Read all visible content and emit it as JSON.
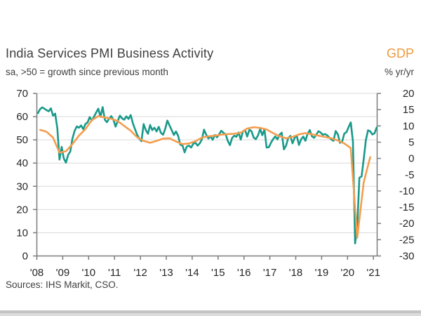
{
  "header": {
    "title": "India Services PMI Business Activity",
    "subtitle": "sa, >50 = growth since previous month",
    "right_title": "GDP",
    "right_subtitle": "% yr/yr"
  },
  "footer": {
    "sources": "Sources: IHS Markit, CSO."
  },
  "chart_data": {
    "type": "line",
    "title": "India Services PMI Business Activity",
    "grid": true,
    "legend_position": "none",
    "style": {
      "grid_color": "#d9d9d9",
      "axis_color": "#7d7d7d",
      "tick_label_color": "#262626",
      "pmi_color": "#18998a",
      "gdp_color": "#f59d4d",
      "gdp_text_color": "#ee9a3d"
    },
    "left_axis": {
      "label": "sa, >50 = growth since previous month",
      "min": 0,
      "max": 70,
      "ticks": [
        70,
        60,
        50,
        40,
        30,
        20,
        10,
        0
      ]
    },
    "right_axis": {
      "label": "% yr/yr",
      "min": -30,
      "max": 20,
      "ticks": [
        20,
        15,
        10,
        5,
        0,
        -5,
        -10,
        -15,
        -20,
        -25,
        -30
      ]
    },
    "x_axis": {
      "start_year": 2008,
      "tick_labels": [
        "'08",
        "'09",
        "'10",
        "'11",
        "'12",
        "'13",
        "'14",
        "'15",
        "'16",
        "'17",
        "'18",
        "'19",
        "'20",
        "'21"
      ]
    },
    "series": [
      {
        "name": "India Services PMI Business Activity",
        "data_name": "pmi-line",
        "axis": "left",
        "color_key": "pmi_color",
        "frequency": "monthly",
        "start": "2008-01",
        "values": [
          61.5,
          63.2,
          64.0,
          63.4,
          62.8,
          62.3,
          63.6,
          60.4,
          61.3,
          55.0,
          41.5,
          47.0,
          42.0,
          40.2,
          43.5,
          45.0,
          50.5,
          53.8,
          55.8,
          55.2,
          56.2,
          54.6,
          56.8,
          57.5,
          59.8,
          58.3,
          60.0,
          61.8,
          63.4,
          59.9,
          64.1,
          58.7,
          57.6,
          59.1,
          60.2,
          58.6,
          55.7,
          58.1,
          60.4,
          59.2,
          58.7,
          60.1,
          59.0,
          60.7,
          57.2,
          54.6,
          52.2,
          50.5,
          49.4,
          56.8,
          54.2,
          52.6,
          56.4,
          54.2,
          55.2,
          53.6,
          55.6,
          53.0,
          52.2,
          54.8,
          58.3,
          56.2,
          54.2,
          52.1,
          53.6,
          51.7,
          47.9,
          47.6,
          44.6,
          47.1,
          47.5,
          46.7,
          48.3,
          48.8,
          47.5,
          48.5,
          50.2,
          54.4,
          52.2,
          50.6,
          51.6,
          50.0,
          52.1,
          51.1,
          52.4,
          53.9,
          53.0,
          52.4,
          49.6,
          47.7,
          50.8,
          51.8,
          51.3,
          53.2,
          50.1,
          53.6,
          54.3,
          51.4,
          54.3,
          53.7,
          51.0,
          50.3,
          51.9,
          54.7,
          52.0,
          54.5,
          46.7,
          46.8,
          48.7,
          50.3,
          51.5,
          50.2,
          52.2,
          53.1,
          45.9,
          47.5,
          50.7,
          51.7,
          48.5,
          50.9,
          51.7,
          47.8,
          50.3,
          51.4,
          49.6,
          52.6,
          54.2,
          51.5,
          50.9,
          52.2,
          53.7,
          53.2,
          52.2,
          52.5,
          52.0,
          51.0,
          50.2,
          49.6,
          53.8,
          52.4,
          48.7,
          49.2,
          52.7,
          53.3,
          55.5,
          57.5,
          49.3,
          5.4,
          12.6,
          33.7,
          34.2,
          41.8,
          49.8,
          54.1,
          53.7,
          52.3,
          52.8,
          55.3
        ]
      },
      {
        "name": "GDP",
        "data_name": "gdp-line",
        "axis": "right",
        "color_key": "gdp_color",
        "frequency": "quarterly",
        "start": "2008-Q1",
        "values": [
          8.8,
          8.2,
          6.4,
          1.8,
          2.2,
          4.4,
          7.0,
          9.0,
          11.8,
          13.0,
          12.6,
          12.2,
          11.5,
          10.0,
          8.5,
          6.5,
          5.4,
          4.8,
          5.4,
          6.1,
          6.2,
          5.2,
          4.4,
          4.6,
          5.3,
          6.4,
          6.8,
          7.0,
          7.3,
          7.5,
          7.6,
          7.9,
          9.2,
          9.6,
          9.4,
          8.9,
          7.8,
          6.8,
          6.2,
          6.6,
          7.4,
          7.8,
          7.4,
          7.0,
          6.6,
          6.2,
          5.5,
          4.6,
          3.2,
          -24.4,
          -7.3,
          0.4
        ]
      }
    ]
  }
}
